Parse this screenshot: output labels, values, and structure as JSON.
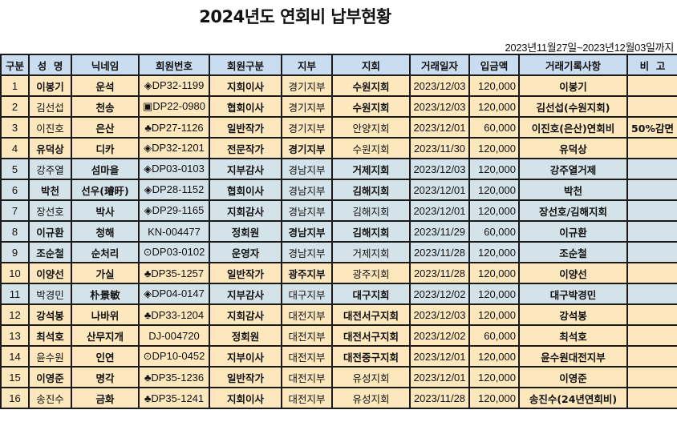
{
  "title": "2024년도 연회비 납부현황",
  "period": "2023년11월27일~2023년12월03일까지",
  "colors": {
    "header_bg": "#c9dcf0",
    "row_cream": "#fde7bd",
    "row_blue": "#d4e3ea"
  },
  "columns": [
    "구분",
    "성  명",
    "닉네임",
    "회원번호",
    "회원구분",
    "지부",
    "지회",
    "거래일자",
    "입금액",
    "거래기록사항",
    "비  고"
  ],
  "rows": [
    {
      "no": "1",
      "name": "이봉기",
      "nick": "운석",
      "id": "◈DP32-1199",
      "type": "지회이사",
      "branch": "경기지부",
      "chapter": "수원지회",
      "date": "2023/12/03",
      "amount": "120,000",
      "memo": "이봉기",
      "note": "",
      "tone": "cream"
    },
    {
      "no": "2",
      "name": "김선섭",
      "nick": "천송",
      "id": "▣DP22-0980",
      "type": "협회이사",
      "branch": "경기지부",
      "chapter": "수원지회",
      "date": "2023/12/03",
      "amount": "120,000",
      "memo": "김선섭(수원지회)",
      "note": "",
      "tone": "cream"
    },
    {
      "no": "3",
      "name": "이진호",
      "nick": "은산",
      "id": "♣DP27-1126",
      "type": "일반작가",
      "branch": "경기지부",
      "chapter": "안양지회",
      "date": "2023/12/01",
      "amount": "60,000",
      "memo": "이진호(은산)연회비",
      "note": "50%감면",
      "tone": "cream"
    },
    {
      "no": "4",
      "name": "유덕상",
      "nick": "디카",
      "id": "◈DP32-1201",
      "type": "전문작가",
      "branch": "경기지부",
      "chapter": "수원지회",
      "date": "2023/11/30",
      "amount": "120,000",
      "memo": "유덕상",
      "note": "",
      "tone": "cream"
    },
    {
      "no": "5",
      "name": "강주열",
      "nick": "섬마을",
      "id": "◈DP03-0103",
      "type": "지부감사",
      "branch": "경남지부",
      "chapter": "거제지회",
      "date": "2023/12/03",
      "amount": "120,000",
      "memo": "강주열거제",
      "note": "",
      "tone": "blue"
    },
    {
      "no": "6",
      "name": "박천",
      "nick": "선우(璿旴)",
      "id": "◈DP28-1152",
      "type": "협회이사",
      "branch": "경남지부",
      "chapter": "김해지회",
      "date": "2023/12/01",
      "amount": "120,000",
      "memo": "박천",
      "note": "",
      "tone": "blue"
    },
    {
      "no": "7",
      "name": "장선호",
      "nick": "박사",
      "id": "◈DP29-1165",
      "type": "지회감사",
      "branch": "경남지부",
      "chapter": "김해지회",
      "date": "2023/12/01",
      "amount": "120,000",
      "memo": "장선호/김해지회",
      "note": "",
      "tone": "blue"
    },
    {
      "no": "8",
      "name": "이규환",
      "nick": "청해",
      "id": "KN-004477",
      "type": "정회원",
      "branch": "경남지부",
      "chapter": "김해지회",
      "date": "2023/11/29",
      "amount": "60,000",
      "memo": "이규환",
      "note": "",
      "tone": "blue"
    },
    {
      "no": "9",
      "name": "조순철",
      "nick": "순처리",
      "id": "⊙DP03-0102",
      "type": "운영자",
      "branch": "경남지부",
      "chapter": "거제지회",
      "date": "2023/11/28",
      "amount": "120,000",
      "memo": "조순철",
      "note": "",
      "tone": "blue"
    },
    {
      "no": "10",
      "name": "이양선",
      "nick": "가실",
      "id": "♣DP35-1257",
      "type": "일반작가",
      "branch": "광주지부",
      "chapter": "광주지회",
      "date": "2023/11/28",
      "amount": "120,000",
      "memo": "이양선",
      "note": "",
      "tone": "cream"
    },
    {
      "no": "11",
      "name": "박경민",
      "nick": "朴景敏",
      "id": "◈DP04-0147",
      "type": "지부감사",
      "branch": "대구지부",
      "chapter": "대구지회",
      "date": "2023/12/02",
      "amount": "120,000",
      "memo": "대구박경민",
      "note": "",
      "tone": "blue"
    },
    {
      "no": "12",
      "name": "강석봉",
      "nick": "나바위",
      "id": "♣DP33-1204",
      "type": "지회감사",
      "branch": "대전지부",
      "chapter": "대전서구지회",
      "date": "2023/12/03",
      "amount": "120,000",
      "memo": "강석봉",
      "note": "",
      "tone": "cream"
    },
    {
      "no": "13",
      "name": "최석호",
      "nick": "산무지개",
      "id": "DJ-004720",
      "type": "정회원",
      "branch": "대전지부",
      "chapter": "대전서구지회",
      "date": "2023/12/02",
      "amount": "60,000",
      "memo": "최석호",
      "note": "",
      "tone": "cream"
    },
    {
      "no": "14",
      "name": "윤수원",
      "nick": "인연",
      "id": "⊙DP10-0452",
      "type": "지부이사",
      "branch": "대전지부",
      "chapter": "대전중구지회",
      "date": "2023/12/01",
      "amount": "120,000",
      "memo": "윤수원대전지부",
      "note": "",
      "tone": "cream"
    },
    {
      "no": "15",
      "name": "이영준",
      "nick": "명각",
      "id": "♣DP35-1236",
      "type": "일반작가",
      "branch": "대전지부",
      "chapter": "유성지회",
      "date": "2023/12/01",
      "amount": "120,000",
      "memo": "이영준",
      "note": "",
      "tone": "cream"
    },
    {
      "no": "16",
      "name": "송진수",
      "nick": "금화",
      "id": "♣DP35-1241",
      "type": "지회이사",
      "branch": "대전지부",
      "chapter": "유성지회",
      "date": "2023/11/28",
      "amount": "120,000",
      "memo": "송진수(24년연회비)",
      "note": "",
      "tone": "cream"
    }
  ]
}
